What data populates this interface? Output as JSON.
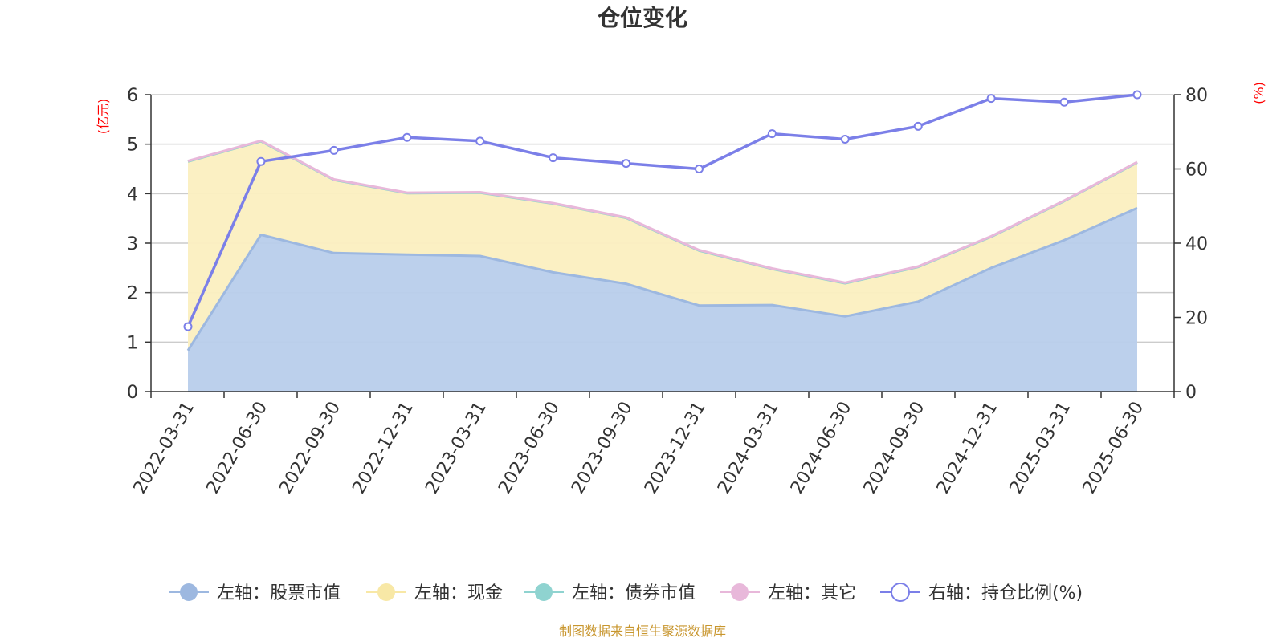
{
  "chart_data": {
    "type": "area",
    "title": "仓位变化",
    "left_unit": "(亿元)",
    "right_unit": "(%)",
    "categories": [
      "2022-03-31",
      "2022-06-30",
      "2022-09-30",
      "2022-12-31",
      "2023-03-31",
      "2023-06-30",
      "2023-09-30",
      "2023-12-31",
      "2024-03-31",
      "2024-06-30",
      "2024-09-30",
      "2024-12-31",
      "2025-03-31",
      "2025-06-30"
    ],
    "left_axis": {
      "min": 0,
      "max": 6,
      "ticks": [
        "0",
        "1",
        "2",
        "3",
        "4",
        "5",
        "6"
      ]
    },
    "right_axis": {
      "min": 0,
      "max": 80,
      "ticks": [
        "0",
        "20",
        "40",
        "60",
        "80"
      ]
    },
    "grid": true,
    "legend_position": "bottom",
    "series": [
      {
        "name": "左轴：股票市值",
        "axis": "left",
        "color": "#9db8e0",
        "fill": "#b8cdeb",
        "values": [
          0.83,
          3.17,
          2.8,
          2.77,
          2.74,
          2.41,
          2.18,
          1.74,
          1.75,
          1.52,
          1.82,
          2.5,
          3.06,
          3.71
        ]
      },
      {
        "name": "左轴：现金",
        "axis": "left",
        "color": "#f8e8a6",
        "fill": "#fbefc0",
        "values": [
          3.82,
          1.89,
          1.48,
          1.24,
          1.28,
          1.39,
          1.33,
          1.11,
          0.73,
          0.67,
          0.7,
          0.63,
          0.79,
          0.92
        ]
      },
      {
        "name": "左轴：债券市值",
        "axis": "left",
        "color": "#8fd3d0",
        "fill": "#8fd3d0",
        "values": [
          0,
          0,
          0,
          0,
          0,
          0,
          0,
          0,
          0,
          0,
          0,
          0,
          0,
          0
        ]
      },
      {
        "name": "左轴：其它",
        "axis": "left",
        "color": "#e8b8da",
        "fill": "#e8b8da",
        "values": [
          0.01,
          0.01,
          0.01,
          0.01,
          0.01,
          0.01,
          0.01,
          0.01,
          0.01,
          0.01,
          0.01,
          0.01,
          0.01,
          0.01
        ]
      },
      {
        "name": "右轴：持仓比例(%)",
        "axis": "right",
        "color": "#7b7fe8",
        "values": [
          17.5,
          62.0,
          65.0,
          68.5,
          67.5,
          63.0,
          61.5,
          60.0,
          69.5,
          68.0,
          71.5,
          79.0,
          78.0,
          80.0
        ]
      }
    ]
  },
  "footer": {
    "source": "制图数据来自恒生聚源数据库"
  }
}
